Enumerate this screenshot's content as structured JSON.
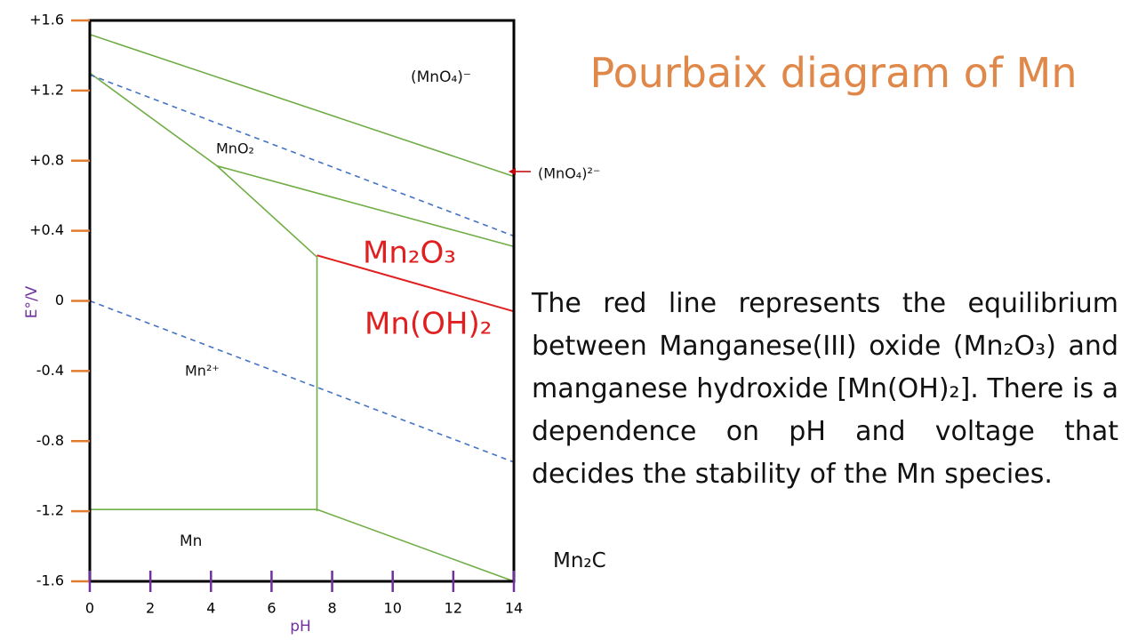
{
  "title": "Pourbaix diagram of Mn",
  "body": "The red line represents the equilibrium between Manganese(III) oxide (Mn₂O₃) and manganese hydroxide [Mn(OH)₂]. There is a dependence on pH and voltage that decides the stability of the Mn species.",
  "footnote": "Mn₂C",
  "chart_data": {
    "type": "line",
    "x_label": "pH",
    "y_label": "E°/V",
    "xlim": [
      0,
      14
    ],
    "xticks": [
      0,
      2,
      4,
      6,
      8,
      10,
      12,
      14
    ],
    "ylim": [
      -1.6,
      1.6
    ],
    "yticks": [
      {
        "value": 1.6,
        "label": "+1.6"
      },
      {
        "value": 1.2,
        "label": "+1.2"
      },
      {
        "value": 0.8,
        "label": "+0.8"
      },
      {
        "value": 0.4,
        "label": "+0.4"
      },
      0,
      -0.4,
      -0.8,
      -1.2,
      -1.6
    ],
    "series": [
      {
        "color": "#70ad47",
        "x": [
          0,
          14
        ],
        "values": [
          1.52,
          0.71
        ]
      },
      {
        "color": "#70ad47",
        "x": [
          0,
          4.2,
          7.5
        ],
        "values": [
          1.3,
          0.77,
          0.25
        ]
      },
      {
        "color": "#70ad47",
        "x": [
          4.2,
          14
        ],
        "values": [
          0.77,
          0.31
        ]
      },
      {
        "color": "#70ad47",
        "x": [
          7.5,
          7.5
        ],
        "values": [
          0.25,
          -1.2
        ]
      },
      {
        "color": "#70ad47",
        "x": [
          0,
          7.5
        ],
        "values": [
          -1.19,
          -1.19
        ]
      },
      {
        "color": "#70ad47",
        "x": [
          7.5,
          14
        ],
        "values": [
          -1.19,
          -1.6
        ]
      },
      {
        "color": "#e02020",
        "x": [
          7.5,
          14
        ],
        "values": [
          0.26,
          -0.06
        ]
      },
      {
        "color": "#4472c4",
        "dashed": true,
        "x": [
          0,
          14
        ],
        "values": [
          1.29,
          0.37
        ]
      },
      {
        "color": "#4472c4",
        "dashed": true,
        "x": [
          0,
          14
        ],
        "values": [
          0,
          -0.92
        ]
      }
    ],
    "annotations": [
      "(MnO₄)⁻",
      "MnO₂",
      "Mn₂O₃",
      "Mn(OH)₂",
      "Mn²⁺",
      "Mn",
      "(MnO₄)²⁻"
    ]
  }
}
